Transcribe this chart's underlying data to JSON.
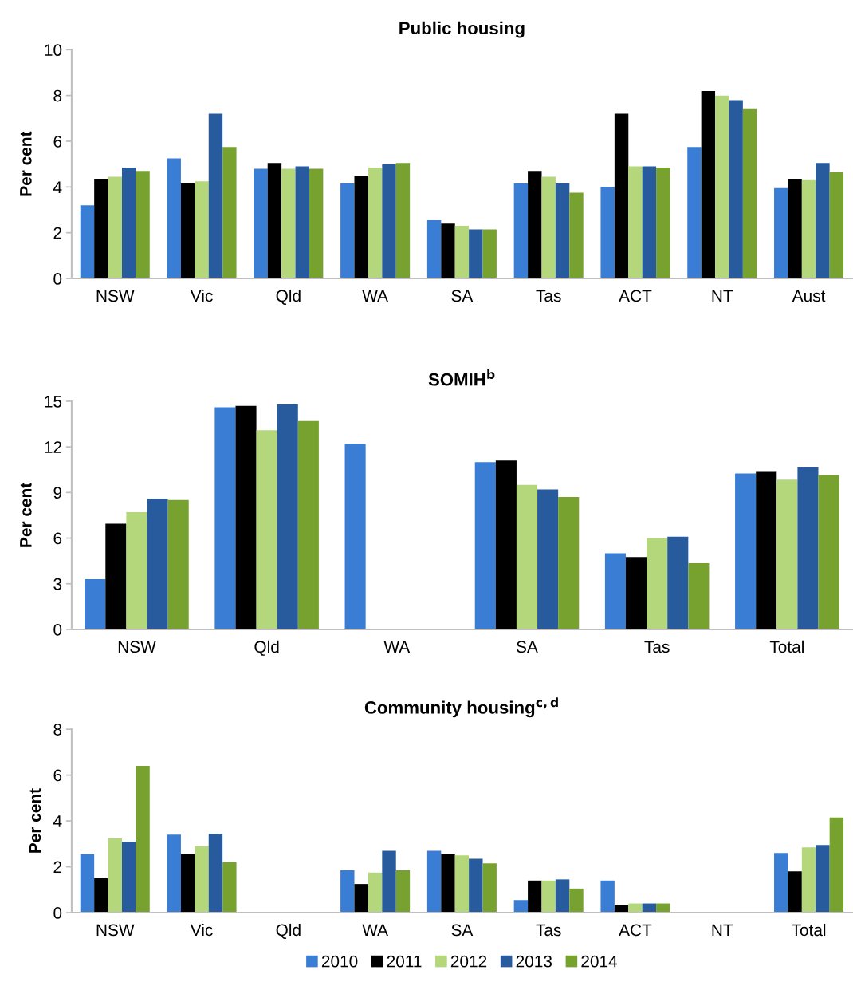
{
  "chart_data": [
    {
      "type": "bar",
      "title": "Public housing",
      "ylabel": "Per cent",
      "categories": [
        "NSW",
        "Vic",
        "Qld",
        "WA",
        "SA",
        "Tas",
        "ACT",
        "NT",
        "Aust"
      ],
      "ylim": [
        0,
        10
      ],
      "yticks": [
        0,
        2,
        4,
        6,
        8,
        10
      ],
      "grid": false,
      "legend": "bottom",
      "series": [
        {
          "name": "2010",
          "color": "#3a7dd4",
          "values": [
            3.2,
            5.25,
            4.8,
            4.15,
            2.55,
            4.15,
            4.0,
            5.75,
            3.95
          ]
        },
        {
          "name": "2011",
          "color": "#000000",
          "values": [
            4.35,
            4.15,
            5.05,
            4.5,
            2.4,
            4.7,
            7.2,
            8.2,
            4.35
          ]
        },
        {
          "name": "2012",
          "color": "#b3d77a",
          "values": [
            4.45,
            4.25,
            4.8,
            4.85,
            2.3,
            4.45,
            4.9,
            8.0,
            4.3
          ]
        },
        {
          "name": "2013",
          "color": "#275b9e",
          "values": [
            4.85,
            7.2,
            4.9,
            5.0,
            2.15,
            4.15,
            4.9,
            7.8,
            5.05
          ]
        },
        {
          "name": "2014",
          "color": "#78a22f",
          "values": [
            4.7,
            5.75,
            4.8,
            5.05,
            2.15,
            3.75,
            4.85,
            7.4,
            4.65
          ]
        }
      ]
    },
    {
      "type": "bar",
      "title": "SOMIH$^{b}$",
      "ylabel": "Per cent",
      "categories": [
        "NSW",
        "Qld",
        "WA",
        "SA",
        "Tas",
        "Total"
      ],
      "ylim": [
        0,
        15
      ],
      "yticks": [
        0,
        3,
        6,
        9,
        12,
        15
      ],
      "grid": false,
      "legend": "bottom",
      "series": [
        {
          "name": "2010",
          "color": "#3a7dd4",
          "values": [
            3.3,
            14.6,
            12.2,
            11.0,
            5.0,
            10.25
          ]
        },
        {
          "name": "2011",
          "color": "#000000",
          "values": [
            6.95,
            14.7,
            null,
            11.1,
            4.75,
            10.35
          ]
        },
        {
          "name": "2012",
          "color": "#b3d77a",
          "values": [
            7.7,
            13.1,
            null,
            9.5,
            6.0,
            9.85
          ]
        },
        {
          "name": "2013",
          "color": "#275b9e",
          "values": [
            8.6,
            14.8,
            null,
            9.2,
            6.1,
            10.65
          ]
        },
        {
          "name": "2014",
          "color": "#78a22f",
          "values": [
            8.5,
            13.7,
            null,
            8.7,
            4.35,
            10.15
          ]
        }
      ]
    },
    {
      "type": "bar",
      "title": "Community housing$^{c,d}$",
      "ylabel": "Per cent",
      "categories": [
        "NSW",
        "Vic",
        "Qld",
        "WA",
        "SA",
        "Tas",
        "ACT",
        "NT",
        "Total"
      ],
      "ylim": [
        0,
        8
      ],
      "yticks": [
        0,
        2,
        4,
        6,
        8
      ],
      "grid": false,
      "legend": "bottom",
      "series": [
        {
          "name": "2010",
          "color": "#3a7dd4",
          "values": [
            2.55,
            3.4,
            null,
            1.85,
            2.7,
            0.55,
            1.4,
            null,
            2.6
          ]
        },
        {
          "name": "2011",
          "color": "#000000",
          "values": [
            1.5,
            2.55,
            null,
            1.25,
            2.55,
            1.4,
            0.35,
            null,
            1.8
          ]
        },
        {
          "name": "2012",
          "color": "#b3d77a",
          "values": [
            3.25,
            2.9,
            null,
            1.75,
            2.5,
            1.4,
            0.4,
            null,
            2.85
          ]
        },
        {
          "name": "2013",
          "color": "#275b9e",
          "values": [
            3.1,
            3.45,
            null,
            2.7,
            2.35,
            1.45,
            0.4,
            null,
            2.95
          ]
        },
        {
          "name": "2014",
          "color": "#78a22f",
          "values": [
            6.4,
            2.2,
            null,
            1.85,
            2.15,
            1.05,
            0.4,
            null,
            4.15
          ]
        }
      ]
    }
  ]
}
